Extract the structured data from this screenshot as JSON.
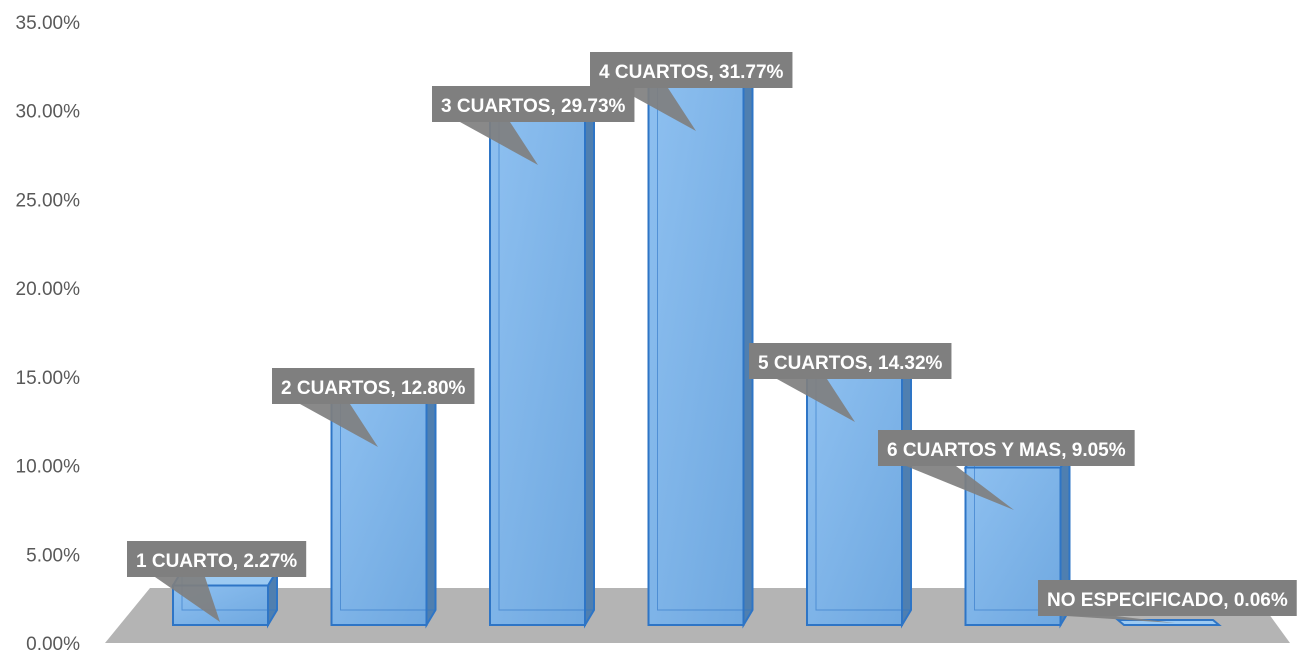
{
  "chart_data": {
    "type": "bar",
    "categories": [
      "1 CUARTO",
      "2 CUARTOS",
      "3 CUARTOS",
      "4 CUARTOS",
      "5 CUARTOS",
      "6 CUARTOS Y MAS",
      "NO ESPECIFICADO"
    ],
    "values": [
      2.27,
      12.8,
      29.73,
      31.77,
      14.32,
      9.05,
      0.06
    ],
    "data_labels": [
      "1 CUARTO, 2.27%",
      "2 CUARTOS, 12.80%",
      "3 CUARTOS, 29.73%",
      "4 CUARTOS, 31.77%",
      "5 CUARTOS, 14.32%",
      "6 CUARTOS Y MAS, 9.05%",
      "NO ESPECIFICADO, 0.06%"
    ],
    "y_ticks": [
      "0.00%",
      "5.00%",
      "10.00%",
      "15.00%",
      "20.00%",
      "25.00%",
      "30.00%",
      "35.00%"
    ],
    "ylim": [
      0,
      35
    ],
    "grid": false,
    "legend": "none",
    "style": "3d-column",
    "colors": {
      "bar_front": "#6fa8e0",
      "bar_front_light": "#8ec0f0",
      "bar_side": "#4f7fb0",
      "bar_top": "#9ccaf2",
      "bar_edge": "#2e75c6",
      "floor": "#b4b4b4",
      "label_bg": "#7f7f7f",
      "label_text": "#ffffff",
      "tick_text": "#595959"
    }
  }
}
